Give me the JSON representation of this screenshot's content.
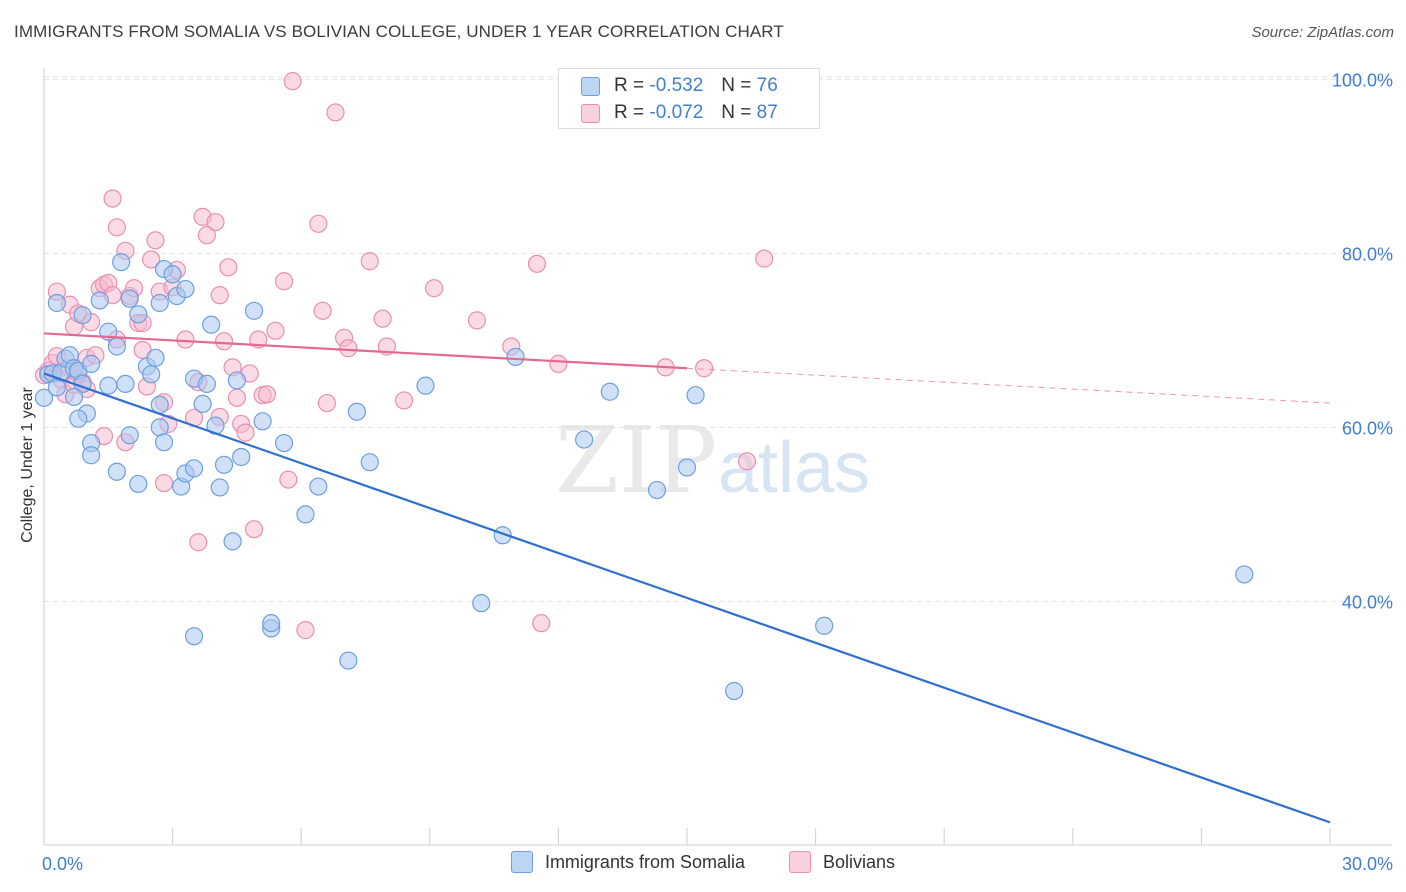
{
  "title": "IMMIGRANTS FROM SOMALIA VS BOLIVIAN COLLEGE, UNDER 1 YEAR CORRELATION CHART",
  "source": "Source: ZipAtlas.com",
  "watermark": {
    "zip": "ZIP",
    "atlas": "atlas"
  },
  "legend_top": [
    {
      "r_label": "R =",
      "r_value": "-0.532",
      "n_label": "N =",
      "n_value": "76"
    },
    {
      "r_label": "R =",
      "r_value": "-0.072",
      "n_label": "N =",
      "n_value": "87"
    }
  ],
  "colors": {
    "somalia_fill": "#a9c8f0",
    "somalia_stroke": "#6d9fe0",
    "somalia_line": "#2f6fcf",
    "bolivian_fill": "#f6bcd0",
    "bolivian_stroke": "#ea8fb0",
    "bolivian_line": "#e5688f",
    "tick_label": "#3f7fd1",
    "grid": "#e3e3e3"
  },
  "chart_data": {
    "type": "scatter",
    "title": "IMMIGRANTS FROM SOMALIA VS BOLIVIAN COLLEGE, UNDER 1 YEAR CORRELATION CHART",
    "xlabel": "",
    "ylabel": "College, Under 1 year",
    "xlim": [
      0,
      30
    ],
    "ylim": [
      12,
      102
    ],
    "x_tick_labels": [
      "0.0%",
      "30.0%"
    ],
    "y_ticks": [
      40,
      60,
      80,
      100
    ],
    "y_tick_labels": [
      "40.0%",
      "60.0%",
      "80.0%",
      "100.0%"
    ],
    "grid": "horizontal dashed",
    "legend_position": "top-center and bottom",
    "series": [
      {
        "name": "Immigrants from Somalia",
        "R": -0.532,
        "N": 76,
        "trend": {
          "x": [
            0,
            30
          ],
          "y": [
            66.2,
            14.6
          ],
          "solid_until": 30
        },
        "points": [
          [
            0.0,
            63.4
          ],
          [
            0.1,
            66.1
          ],
          [
            0.2,
            66.2
          ],
          [
            0.3,
            64.6
          ],
          [
            0.4,
            66.3
          ],
          [
            0.5,
            67.9
          ],
          [
            0.6,
            68.3
          ],
          [
            0.7,
            66.8
          ],
          [
            0.8,
            66.5
          ],
          [
            0.9,
            65.0
          ],
          [
            1.0,
            61.6
          ],
          [
            1.1,
            67.3
          ],
          [
            0.3,
            74.3
          ],
          [
            0.7,
            63.5
          ],
          [
            0.9,
            72.9
          ],
          [
            1.3,
            74.6
          ],
          [
            1.5,
            71.0
          ],
          [
            1.7,
            69.3
          ],
          [
            1.9,
            65.0
          ],
          [
            2.0,
            74.8
          ],
          [
            1.8,
            79.0
          ],
          [
            2.2,
            73.0
          ],
          [
            2.4,
            67.0
          ],
          [
            2.6,
            68.0
          ],
          [
            2.7,
            74.3
          ],
          [
            2.8,
            78.2
          ],
          [
            3.0,
            77.6
          ],
          [
            3.1,
            75.1
          ],
          [
            3.3,
            75.9
          ],
          [
            2.5,
            66.1
          ],
          [
            2.7,
            62.6
          ],
          [
            2.0,
            59.1
          ],
          [
            1.1,
            58.2
          ],
          [
            1.1,
            56.8
          ],
          [
            1.7,
            54.9
          ],
          [
            2.2,
            53.5
          ],
          [
            2.7,
            60.0
          ],
          [
            2.8,
            58.3
          ],
          [
            3.2,
            53.2
          ],
          [
            3.3,
            54.7
          ],
          [
            3.5,
            55.3
          ],
          [
            3.5,
            65.6
          ],
          [
            3.7,
            62.7
          ],
          [
            3.8,
            65.0
          ],
          [
            3.9,
            71.8
          ],
          [
            4.0,
            60.2
          ],
          [
            4.1,
            53.1
          ],
          [
            4.2,
            55.7
          ],
          [
            4.4,
            46.9
          ],
          [
            4.5,
            65.4
          ],
          [
            4.6,
            56.6
          ],
          [
            4.9,
            73.4
          ],
          [
            5.1,
            60.7
          ],
          [
            5.6,
            58.2
          ],
          [
            5.3,
            36.9
          ],
          [
            5.3,
            37.5
          ],
          [
            6.1,
            50.0
          ],
          [
            6.4,
            53.2
          ],
          [
            7.1,
            33.2
          ],
          [
            7.3,
            61.8
          ],
          [
            7.6,
            56.0
          ],
          [
            8.9,
            64.8
          ],
          [
            10.2,
            39.8
          ],
          [
            10.7,
            47.6
          ],
          [
            11.0,
            68.1
          ],
          [
            12.6,
            58.6
          ],
          [
            13.2,
            64.1
          ],
          [
            14.3,
            52.8
          ],
          [
            15.0,
            55.4
          ],
          [
            15.2,
            63.7
          ],
          [
            16.1,
            29.7
          ],
          [
            18.2,
            37.2
          ],
          [
            28.0,
            43.1
          ],
          [
            3.5,
            36.0
          ],
          [
            0.8,
            61.0
          ],
          [
            1.5,
            64.8
          ]
        ]
      },
      {
        "name": "Bolivians",
        "R": -0.072,
        "N": 87,
        "trend": {
          "x": [
            0,
            30
          ],
          "y": [
            70.8,
            62.8
          ],
          "solid_until": 15
        },
        "points": [
          [
            0.0,
            66.0
          ],
          [
            0.1,
            66.5
          ],
          [
            0.2,
            67.4
          ],
          [
            0.3,
            68.2
          ],
          [
            0.4,
            65.5
          ],
          [
            0.5,
            63.8
          ],
          [
            0.6,
            66.8
          ],
          [
            0.7,
            64.9
          ],
          [
            0.8,
            66.2
          ],
          [
            0.9,
            65.2
          ],
          [
            1.0,
            64.4
          ],
          [
            0.6,
            74.1
          ],
          [
            0.7,
            71.6
          ],
          [
            0.8,
            73.1
          ],
          [
            1.0,
            68.0
          ],
          [
            1.1,
            72.1
          ],
          [
            1.2,
            68.3
          ],
          [
            1.3,
            76.0
          ],
          [
            1.4,
            76.4
          ],
          [
            1.5,
            76.6
          ],
          [
            1.6,
            75.2
          ],
          [
            1.7,
            70.1
          ],
          [
            1.6,
            86.3
          ],
          [
            1.7,
            83.0
          ],
          [
            1.9,
            80.3
          ],
          [
            2.0,
            75.1
          ],
          [
            2.1,
            76.0
          ],
          [
            2.2,
            72.0
          ],
          [
            2.3,
            68.9
          ],
          [
            2.4,
            64.7
          ],
          [
            2.5,
            79.3
          ],
          [
            2.6,
            81.5
          ],
          [
            2.7,
            75.6
          ],
          [
            2.8,
            62.9
          ],
          [
            2.9,
            60.4
          ],
          [
            3.0,
            76.1
          ],
          [
            3.1,
            78.1
          ],
          [
            3.3,
            70.1
          ],
          [
            3.5,
            61.1
          ],
          [
            3.6,
            65.2
          ],
          [
            3.7,
            84.2
          ],
          [
            3.8,
            82.1
          ],
          [
            4.0,
            83.6
          ],
          [
            4.1,
            75.2
          ],
          [
            4.2,
            69.9
          ],
          [
            4.4,
            66.9
          ],
          [
            4.5,
            63.4
          ],
          [
            4.3,
            78.4
          ],
          [
            4.6,
            60.4
          ],
          [
            4.7,
            59.4
          ],
          [
            4.8,
            66.2
          ],
          [
            5.0,
            70.1
          ],
          [
            4.9,
            48.3
          ],
          [
            5.1,
            63.7
          ],
          [
            5.2,
            63.8
          ],
          [
            5.4,
            71.1
          ],
          [
            5.6,
            76.8
          ],
          [
            5.7,
            54.0
          ],
          [
            5.8,
            99.8
          ],
          [
            6.1,
            36.7
          ],
          [
            6.4,
            83.4
          ],
          [
            6.5,
            73.4
          ],
          [
            6.6,
            62.8
          ],
          [
            6.8,
            96.2
          ],
          [
            7.0,
            70.3
          ],
          [
            7.1,
            69.1
          ],
          [
            7.6,
            79.1
          ],
          [
            7.9,
            72.5
          ],
          [
            8.0,
            69.3
          ],
          [
            8.4,
            63.1
          ],
          [
            9.1,
            76.0
          ],
          [
            10.1,
            72.3
          ],
          [
            10.9,
            69.3
          ],
          [
            11.5,
            78.8
          ],
          [
            11.6,
            37.5
          ],
          [
            12.0,
            67.3
          ],
          [
            14.5,
            66.9
          ],
          [
            15.4,
            66.8
          ],
          [
            16.4,
            56.1
          ],
          [
            16.8,
            79.4
          ],
          [
            3.6,
            46.8
          ],
          [
            2.8,
            53.6
          ],
          [
            0.3,
            75.6
          ],
          [
            2.3,
            72.0
          ],
          [
            1.4,
            59.0
          ],
          [
            1.9,
            58.3
          ],
          [
            4.1,
            61.2
          ]
        ]
      }
    ]
  }
}
